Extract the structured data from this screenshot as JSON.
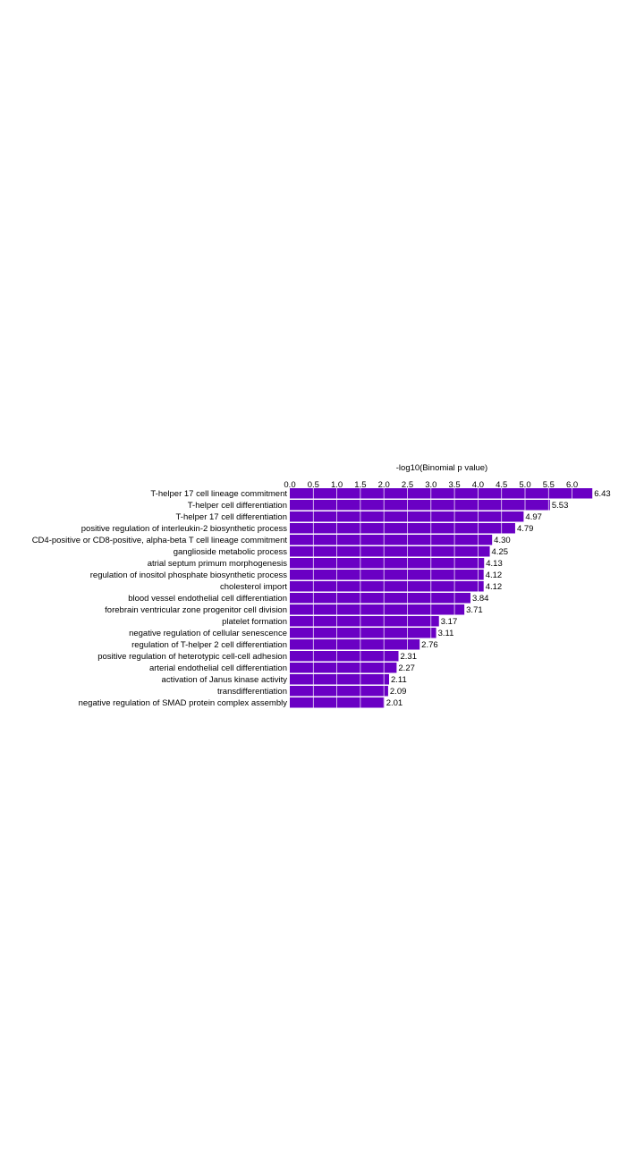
{
  "chart_data": {
    "type": "bar",
    "orientation": "horizontal",
    "xlabel": "-log10(Binomial p value)",
    "ylabel": "",
    "xlim": [
      0,
      6.5
    ],
    "x_ticks": [
      0.0,
      0.5,
      1.0,
      1.5,
      2.0,
      2.5,
      3.0,
      3.5,
      4.0,
      4.5,
      5.0,
      5.5,
      6.0
    ],
    "x_tick_labels": [
      "0.0",
      "0.5",
      "1.0",
      "1.5",
      "2.0",
      "2.5",
      "3.0",
      "3.5",
      "4.0",
      "4.5",
      "5.0",
      "5.5",
      "6.0"
    ],
    "x_axis_position": "top",
    "grid": true,
    "bar_color": "#6a00c4",
    "categories": [
      "T-helper 17 cell lineage commitment",
      "T-helper cell differentiation",
      "T-helper 17 cell differentiation",
      "positive regulation of interleukin-2 biosynthetic process",
      "CD4-positive or CD8-positive, alpha-beta T cell lineage commitment",
      "ganglioside metabolic process",
      "atrial septum primum morphogenesis",
      "regulation of inositol phosphate biosynthetic process",
      "cholesterol import",
      "blood vessel endothelial cell differentiation",
      "forebrain ventricular zone progenitor cell division",
      "platelet formation",
      "negative regulation of cellular senescence",
      "regulation of T-helper 2 cell differentiation",
      "positive regulation of heterotypic cell-cell adhesion",
      "arterial endothelial cell differentiation",
      "activation of Janus kinase activity",
      "transdifferentiation",
      "negative regulation of SMAD protein complex assembly"
    ],
    "values": [
      6.43,
      5.53,
      4.97,
      4.79,
      4.3,
      4.25,
      4.13,
      4.12,
      4.12,
      3.84,
      3.71,
      3.17,
      3.11,
      2.76,
      2.31,
      2.27,
      2.11,
      2.09,
      2.01
    ],
    "value_labels": [
      "6.43",
      "5.53",
      "4.97",
      "4.79",
      "4.30",
      "4.25",
      "4.13",
      "4.12",
      "4.12",
      "3.84",
      "3.71",
      "3.17",
      "3.11",
      "2.76",
      "2.31",
      "2.27",
      "2.11",
      "2.09",
      "2.01"
    ]
  }
}
